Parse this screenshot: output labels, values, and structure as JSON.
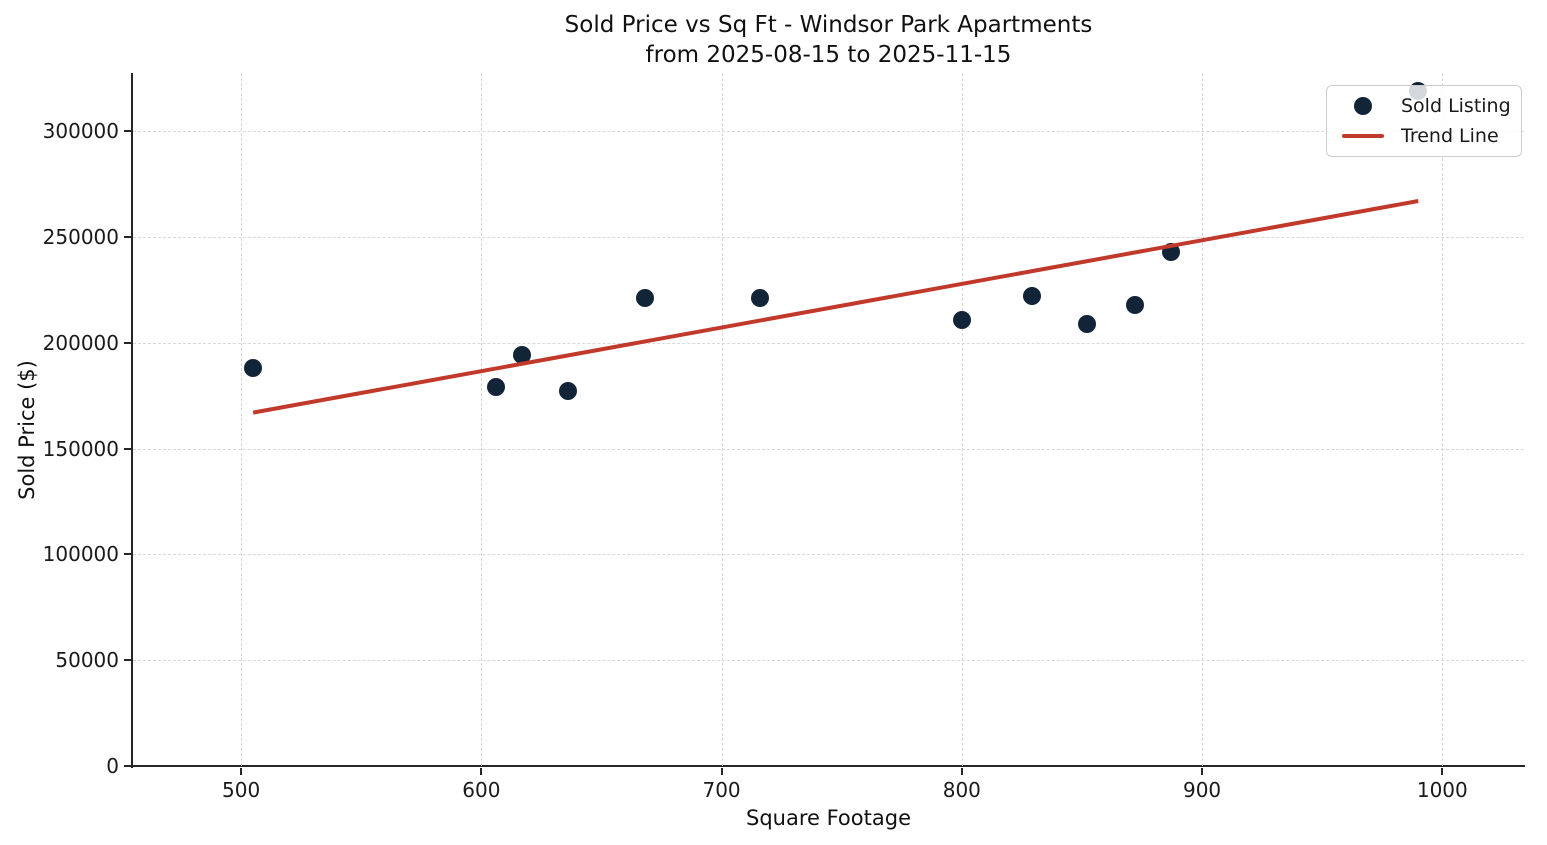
{
  "title": {
    "line1": "Sold Price vs Sq Ft - Windsor Park Apartments",
    "line2": "from 2025-08-15 to 2025-11-15"
  },
  "legend": {
    "items": [
      {
        "label": "Sold Listing",
        "marker": "dot"
      },
      {
        "label": "Trend Line",
        "marker": "line"
      }
    ]
  },
  "colors": {
    "point": "#112438",
    "trend": "#c0392b",
    "grid": "#d8d8d8",
    "spine": "#262626",
    "text": "#1a1a1a"
  },
  "chart_data": {
    "type": "scatter",
    "title": "Sold Price vs Sq Ft - Windsor Park Apartments from 2025-08-15 to 2025-11-15",
    "xlabel": "Square Footage",
    "ylabel": "Sold Price ($)",
    "xlim": [
      455,
      1034
    ],
    "ylim": [
      0,
      327500
    ],
    "xticks": [
      500,
      600,
      700,
      800,
      900,
      1000
    ],
    "yticks": [
      0,
      50000,
      100000,
      150000,
      200000,
      250000,
      300000
    ],
    "grid": true,
    "legend_position": "upper right",
    "series": [
      {
        "name": "Sold Listing",
        "type": "scatter",
        "color": "#112438",
        "points": [
          [
            505,
            188000
          ],
          [
            606,
            179000
          ],
          [
            617,
            194000
          ],
          [
            636,
            177000
          ],
          [
            668,
            221000
          ],
          [
            716,
            221000
          ],
          [
            800,
            211000
          ],
          [
            829,
            222000
          ],
          [
            852,
            209000
          ],
          [
            872,
            218000
          ],
          [
            887,
            243000
          ],
          [
            990,
            319000
          ]
        ]
      },
      {
        "name": "Trend Line",
        "type": "line",
        "color": "#c0392b",
        "points": [
          [
            505,
            167000
          ],
          [
            990,
            267000
          ]
        ]
      }
    ]
  }
}
